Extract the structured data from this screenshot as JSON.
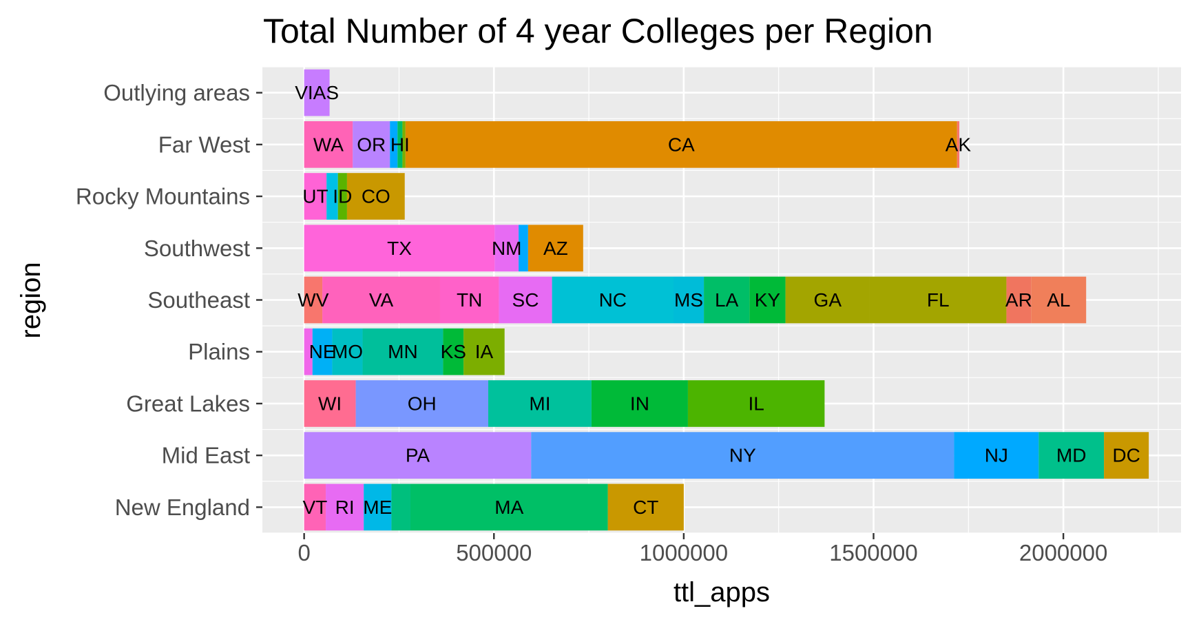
{
  "chart_data": {
    "type": "bar",
    "orientation": "horizontal",
    "stacked": true,
    "title": "Total Number of 4 year Colleges per Region",
    "xlabel": "ttl_apps",
    "ylabel": "region",
    "xlim": [
      -110000,
      2310000
    ],
    "x_ticks": [
      0,
      500000,
      1000000,
      1500000,
      2000000
    ],
    "x_tick_labels": [
      "0",
      "500000",
      "1000000",
      "1500000",
      "2000000"
    ],
    "grid": true,
    "legend": "none",
    "categories": [
      "New England",
      "Mid East",
      "Great Lakes",
      "Plains",
      "Southeast",
      "Southwest",
      "Rocky Mountains",
      "Far West",
      "Outlying areas"
    ],
    "segments": [
      [
        {
          "label": "VT",
          "value": 57000,
          "color": "#FF63B6"
        },
        {
          "label": "RI",
          "value": 100000,
          "color": "#E76BF3"
        },
        {
          "label": "ME",
          "value": 73000,
          "color": "#00B8E7"
        },
        {
          "label": "",
          "value": 50000,
          "color": "#00BF7D"
        },
        {
          "label": "MA",
          "value": 520000,
          "color": "#00BF66"
        },
        {
          "label": "CT",
          "value": 200000,
          "color": "#C99800"
        }
      ],
      [
        {
          "label": "PA",
          "value": 598000,
          "color": "#B983FF"
        },
        {
          "label": "NY",
          "value": 1114000,
          "color": "#529EFF"
        },
        {
          "label": "NJ",
          "value": 223000,
          "color": "#00A9FF"
        },
        {
          "label": "MD",
          "value": 172000,
          "color": "#00C08B"
        },
        {
          "label": "DC",
          "value": 118000,
          "color": "#C99800"
        }
      ],
      [
        {
          "label": "WI",
          "value": 136000,
          "color": "#FF6C91"
        },
        {
          "label": "OH",
          "value": 349000,
          "color": "#7997FF"
        },
        {
          "label": "MI",
          "value": 272000,
          "color": "#00C19C"
        },
        {
          "label": "IN",
          "value": 254000,
          "color": "#00BA38"
        },
        {
          "label": "IL",
          "value": 360000,
          "color": "#4CB400"
        }
      ],
      [
        {
          "label": "",
          "value": 22000,
          "color": "#F066EA"
        },
        {
          "label": "NE",
          "value": 52000,
          "color": "#00B0F6"
        },
        {
          "label": "MO",
          "value": 80000,
          "color": "#00BFC4"
        },
        {
          "label": "MN",
          "value": 212000,
          "color": "#00BF9B"
        },
        {
          "label": "KS",
          "value": 54000,
          "color": "#00BA38"
        },
        {
          "label": "IA",
          "value": 108000,
          "color": "#7CAE00"
        }
      ],
      [
        {
          "label": "WV",
          "value": 48000,
          "color": "#F8766D"
        },
        {
          "label": "VA",
          "value": 310000,
          "color": "#FF62BC"
        },
        {
          "label": "TN",
          "value": 155000,
          "color": "#FF61C9"
        },
        {
          "label": "SC",
          "value": 140000,
          "color": "#E76BF3"
        },
        {
          "label": "NC",
          "value": 320000,
          "color": "#00C1D5"
        },
        {
          "label": "MS",
          "value": 80000,
          "color": "#00BCD8"
        },
        {
          "label": "LA",
          "value": 120000,
          "color": "#00BE67"
        },
        {
          "label": "KY",
          "value": 95000,
          "color": "#00BA38"
        },
        {
          "label": "GA",
          "value": 222000,
          "color": "#A3A500"
        },
        {
          "label": "FL",
          "value": 360000,
          "color": "#A3A500"
        },
        {
          "label": "AR",
          "value": 65000,
          "color": "#F0755F"
        },
        {
          "label": "AL",
          "value": 145000,
          "color": "#F07F5A"
        }
      ],
      [
        {
          "label": "TX",
          "value": 502000,
          "color": "#FF64DA"
        },
        {
          "label": "NM",
          "value": 63000,
          "color": "#E76BF3"
        },
        {
          "label": "",
          "value": 25000,
          "color": "#00A9FF"
        },
        {
          "label": "AZ",
          "value": 145000,
          "color": "#E08B00"
        }
      ],
      [
        {
          "label": "UT",
          "value": 59000,
          "color": "#FF63D6"
        },
        {
          "label": "",
          "value": 30000,
          "color": "#00C0E7"
        },
        {
          "label": "ID",
          "value": 24000,
          "color": "#5BB300"
        },
        {
          "label": "CO",
          "value": 152000,
          "color": "#C99800"
        }
      ],
      [
        {
          "label": "WA",
          "value": 128000,
          "color": "#FF63B6"
        },
        {
          "label": "OR",
          "value": 98000,
          "color": "#B983FF"
        },
        {
          "label": "",
          "value": 20000,
          "color": "#00A9FF"
        },
        {
          "label": "HI",
          "value": 13000,
          "color": "#00BE67"
        },
        {
          "label": "",
          "value": 8000,
          "color": "#7CAE00"
        },
        {
          "label": "CA",
          "value": 1453000,
          "color": "#E08B00"
        },
        {
          "label": "AK",
          "value": 6000,
          "color": "#F8766D"
        }
      ],
      [
        {
          "label": "VIAS",
          "value": 67000,
          "color": "#C77CFF"
        }
      ]
    ]
  }
}
